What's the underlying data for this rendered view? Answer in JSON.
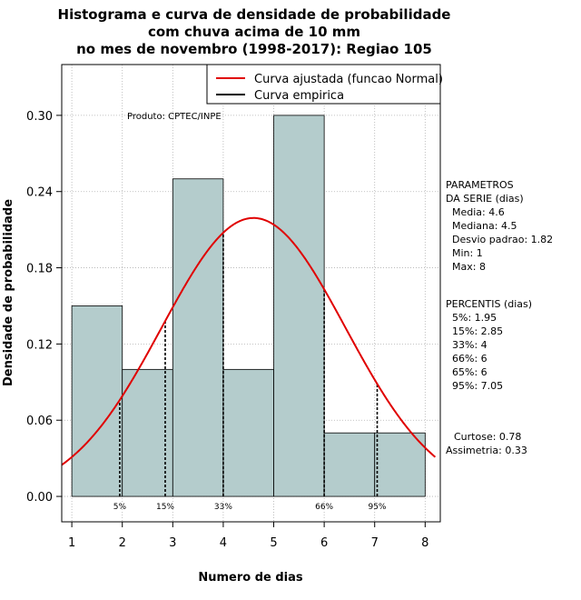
{
  "chart_data": {
    "type": "bar",
    "title_lines": [
      "Histograma e curva de densidade de probabilidade",
      "com chuva acima de 10 mm",
      "no mes de novembro (1998-2017): Regiao 105"
    ],
    "xlabel": "Numero de dias",
    "ylabel": "Densidade de probabilidade",
    "xlim": [
      0.8,
      8.3
    ],
    "ylim": [
      -0.02,
      0.34
    ],
    "x_ticks": [
      1,
      2,
      3,
      4,
      5,
      6,
      7,
      8
    ],
    "y_ticks": [
      0.0,
      0.06,
      0.12,
      0.18,
      0.24,
      0.3
    ],
    "y_tick_labels": [
      "0.00",
      "0.06",
      "0.12",
      "0.18",
      "0.24",
      "0.30"
    ],
    "bins": [
      {
        "x0": 1,
        "x1": 2,
        "density": 0.15
      },
      {
        "x0": 2,
        "x1": 3,
        "density": 0.1
      },
      {
        "x0": 3,
        "x1": 4,
        "density": 0.25
      },
      {
        "x0": 4,
        "x1": 5,
        "density": 0.1
      },
      {
        "x0": 5,
        "x1": 6,
        "density": 0.3
      },
      {
        "x0": 6,
        "x1": 7,
        "density": 0.05
      },
      {
        "x0": 7,
        "x1": 8,
        "density": 0.05
      }
    ],
    "normal_fit": {
      "mean": 4.6,
      "sd": 1.82
    },
    "percentile_markers": [
      {
        "label": "5%",
        "x": 1.95
      },
      {
        "label": "15%",
        "x": 2.85
      },
      {
        "label": "33%",
        "x": 4
      },
      {
        "label": "66%",
        "x": 6
      },
      {
        "label": "95%",
        "x": 7.05
      }
    ],
    "legend": {
      "position": "top-right",
      "entries": [
        {
          "label": "Curva ajustada (funcao Normal)",
          "color": "#e00000"
        },
        {
          "label": "Curva empirica",
          "color": "#000000"
        }
      ]
    },
    "annotation": "Produto: CPTEC/INPE",
    "colors": {
      "bar_fill": "#b4cccc",
      "curve": "#e00000",
      "grid": "#b0b0b0"
    }
  },
  "stats_panel": {
    "params_title_1": "PARAMETROS",
    "params_title_2": "DA SERIE (dias)",
    "params": [
      "Media: 4.6",
      "Mediana: 4.5",
      "Desvio padrao: 1.82",
      "Min: 1",
      "Max: 8"
    ],
    "percentis_title": "PERCENTIS (dias)",
    "percentis": [
      "5%: 1.95",
      "15%: 2.85",
      "33%: 4",
      "66%: 6",
      "65%: 6",
      "95%: 7.05"
    ],
    "curtose": "Curtose: 0.78",
    "assimetria": "Assimetria: 0.33"
  }
}
